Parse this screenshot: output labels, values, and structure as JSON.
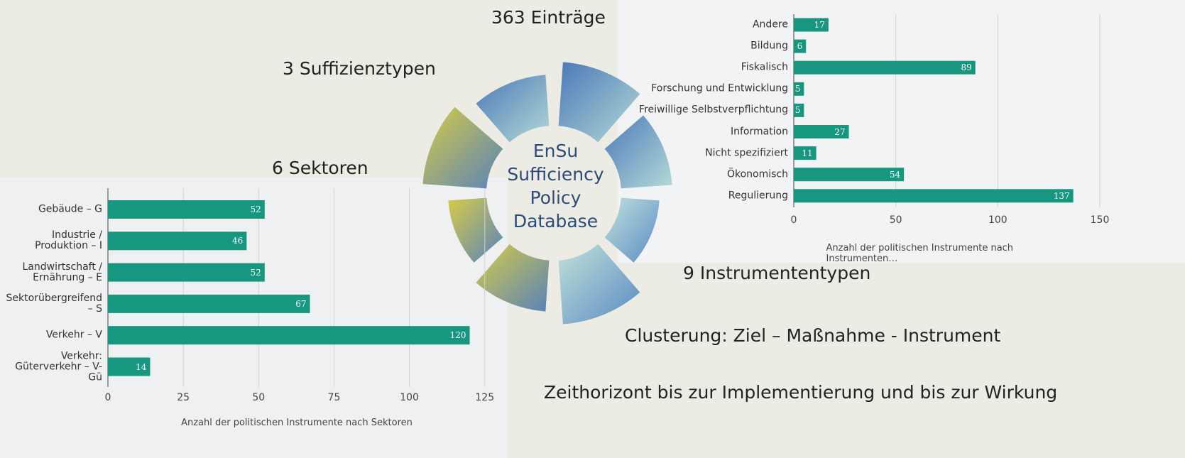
{
  "headings": {
    "entries": "363 Einträge",
    "types": "3 Suffizienztypen",
    "sectors": "6 Sektoren",
    "instruments": "9 Instrumententypen",
    "clustering": "Clusterung: Ziel – Maßnahme - Instrument",
    "horizon": "Zeithorizont bis zur Implementierung und bis zur Wirkung",
    "logo": "EnSu Sufficiency Policy Database"
  },
  "chart_data": [
    {
      "type": "hbar",
      "x_label": "Anzahl der politischen Instrumente nach Sektoren",
      "categories": [
        "Gebäude – G",
        "Industrie / Produktion – I",
        "Landwirtschaft / Ernährung – E",
        "Sektorübergreifend – S",
        "Verkehr – V",
        "Verkehr: Güterverkehr – V-Gü"
      ],
      "values": [
        52,
        46,
        52,
        67,
        120,
        14
      ],
      "color": "#17977f",
      "xlim": [
        0,
        130
      ],
      "xticks": [
        0,
        25,
        50,
        75,
        100,
        125
      ],
      "grid": true
    },
    {
      "type": "hbar",
      "x_label": "Anzahl der politischen Instrumente nach Instrumenten…",
      "categories": [
        "Andere",
        "Bildung",
        "Fiskalisch",
        "Forschung und Entwicklung",
        "Freiwillige Selbstverpflichtung",
        "Information",
        "Nicht spezifiziert",
        "Ökonomisch",
        "Regulierung"
      ],
      "values": [
        17,
        6,
        89,
        5,
        5,
        27,
        11,
        54,
        137
      ],
      "color": "#17977f",
      "xlim": [
        0,
        150
      ],
      "xticks": [
        0,
        50,
        100,
        150
      ],
      "grid": true
    }
  ]
}
